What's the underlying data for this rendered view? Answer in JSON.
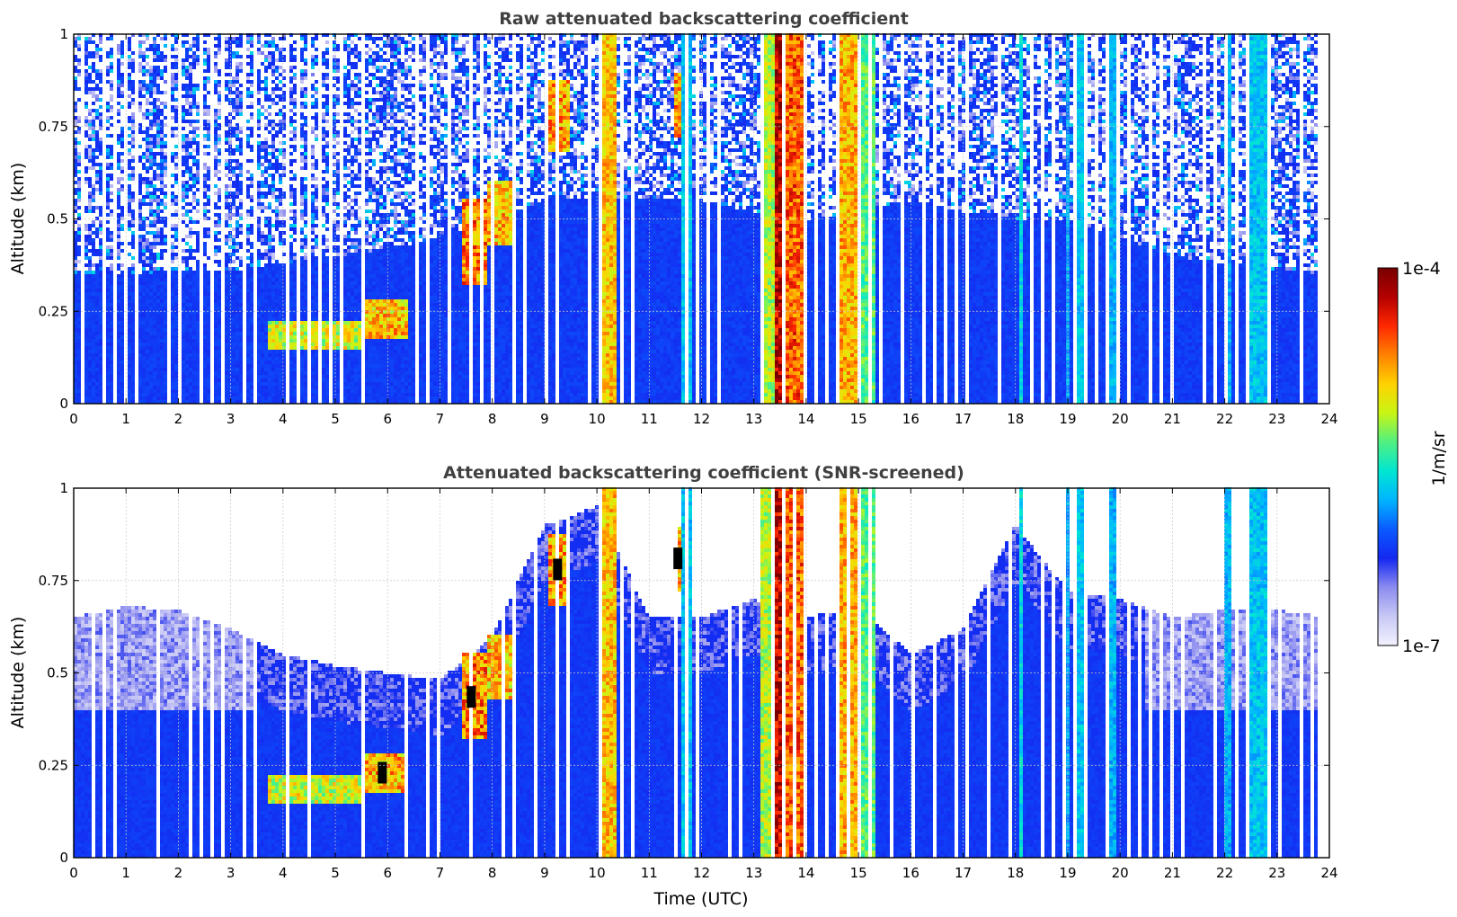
{
  "colors": {
    "colormap": [
      "#f2f2ff",
      "#c8c8f5",
      "#8c8cf0",
      "#1428f0",
      "#0a5aff",
      "#00b4ff",
      "#00e6d2",
      "#50f082",
      "#c8f514",
      "#ffd200",
      "#ff8200",
      "#ff2800",
      "#b40000",
      "#780000"
    ],
    "title_text": "#404040",
    "grid": "#c8c8c8",
    "black_spots": "#000000"
  },
  "colorbar": {
    "max_label": "1e-4",
    "min_label": "1e-7",
    "unit_label": "1/m/sr"
  },
  "chart_data": [
    {
      "type": "heatmap",
      "title": "Raw attenuated backscattering coefficient",
      "xlabel": "",
      "ylabel": "Altitude (km)",
      "xlim": [
        0,
        24
      ],
      "ylim": [
        0,
        1
      ],
      "xticks": [
        "0",
        "1",
        "2",
        "3",
        "4",
        "5",
        "6",
        "7",
        "8",
        "9",
        "10",
        "11",
        "12",
        "13",
        "14",
        "15",
        "16",
        "17",
        "18",
        "19",
        "20",
        "21",
        "22",
        "23",
        "24"
      ],
      "yticks": [
        "0",
        "0.25",
        "0.5",
        "0.75",
        "1"
      ],
      "ytick_values": [
        0,
        0.25,
        0.5,
        0.75,
        1
      ],
      "grid": true,
      "color_scale": "log",
      "clim": [
        1e-07,
        0.0001
      ],
      "data_end_hour": 23.8,
      "background_top_km": [
        0.35,
        0.35,
        0.36,
        0.36,
        0.38,
        0.4,
        0.42,
        0.45,
        0.5,
        0.55,
        0.55,
        0.55,
        0.55,
        0.52,
        0.5,
        0.52,
        0.55,
        0.52,
        0.5,
        0.5,
        0.45,
        0.4,
        0.38,
        0.36,
        0.35
      ],
      "layers": [
        {
          "x0": 3.7,
          "x1": 5.6,
          "y0": 0.15,
          "y1": 0.22,
          "level": 0.7
        },
        {
          "x0": 5.5,
          "x1": 6.4,
          "y0": 0.18,
          "y1": 0.28,
          "level": 0.78
        },
        {
          "x0": 7.4,
          "x1": 7.9,
          "y0": 0.32,
          "y1": 0.55,
          "level": 0.85
        },
        {
          "x0": 7.9,
          "x1": 8.4,
          "y0": 0.43,
          "y1": 0.6,
          "level": 0.78
        },
        {
          "x0": 9.1,
          "x1": 9.5,
          "y0": 0.68,
          "y1": 0.88,
          "level": 0.82
        },
        {
          "x0": 11.5,
          "x1": 11.7,
          "y0": 0.72,
          "y1": 0.9,
          "level": 0.82
        }
      ],
      "columns": [
        {
          "x0": 10.08,
          "x1": 10.4,
          "level": 0.72
        },
        {
          "x0": 11.6,
          "x1": 11.8,
          "level": 0.42
        },
        {
          "x0": 13.15,
          "x1": 13.4,
          "level": 0.62
        },
        {
          "x0": 13.4,
          "x1": 13.55,
          "level": 0.95
        },
        {
          "x0": 13.55,
          "x1": 14.05,
          "level": 0.82
        },
        {
          "x0": 14.65,
          "x1": 14.95,
          "level": 0.74
        },
        {
          "x0": 14.95,
          "x1": 15.35,
          "level": 0.55
        },
        {
          "x0": 18.05,
          "x1": 18.15,
          "level": 0.45
        },
        {
          "x0": 18.95,
          "x1": 19.05,
          "level": 0.38
        },
        {
          "x0": 19.15,
          "x1": 19.3,
          "level": 0.42
        },
        {
          "x0": 19.75,
          "x1": 19.9,
          "level": 0.4
        },
        {
          "x0": 22.0,
          "x1": 22.15,
          "level": 0.4
        },
        {
          "x0": 22.4,
          "x1": 22.8,
          "level": 0.42
        }
      ]
    },
    {
      "type": "heatmap",
      "title": "Attenuated backscattering coefficient (SNR-screened)",
      "xlabel": "Time (UTC)",
      "ylabel": "Altitude (km)",
      "xlim": [
        0,
        24
      ],
      "ylim": [
        0,
        1
      ],
      "xticks": [
        "0",
        "1",
        "2",
        "3",
        "4",
        "5",
        "6",
        "7",
        "8",
        "9",
        "10",
        "11",
        "12",
        "13",
        "14",
        "15",
        "16",
        "17",
        "18",
        "19",
        "20",
        "21",
        "22",
        "23",
        "24"
      ],
      "yticks": [
        "0",
        "0.25",
        "0.5",
        "0.75",
        "1"
      ],
      "ytick_values": [
        0,
        0.25,
        0.5,
        0.75,
        1
      ],
      "grid": true,
      "color_scale": "log",
      "clim": [
        1e-07,
        0.0001
      ],
      "data_end_hour": 23.8,
      "signal_top_km": [
        0.65,
        0.68,
        0.67,
        0.62,
        0.55,
        0.52,
        0.5,
        0.48,
        0.6,
        0.9,
        0.95,
        0.65,
        0.65,
        0.7,
        0.65,
        0.68,
        0.55,
        0.62,
        0.9,
        0.72,
        0.7,
        0.65,
        0.67,
        0.67,
        0.65
      ],
      "layers": [
        {
          "x0": 3.7,
          "x1": 5.6,
          "y0": 0.15,
          "y1": 0.22,
          "level": 0.7
        },
        {
          "x0": 5.5,
          "x1": 6.4,
          "y0": 0.18,
          "y1": 0.28,
          "level": 0.8
        },
        {
          "x0": 7.4,
          "x1": 7.9,
          "y0": 0.32,
          "y1": 0.55,
          "level": 0.85
        },
        {
          "x0": 7.9,
          "x1": 8.4,
          "y0": 0.43,
          "y1": 0.6,
          "level": 0.78
        },
        {
          "x0": 9.1,
          "x1": 9.5,
          "y0": 0.68,
          "y1": 0.88,
          "level": 0.82
        },
        {
          "x0": 11.5,
          "x1": 11.7,
          "y0": 0.72,
          "y1": 0.9,
          "level": 0.82
        }
      ],
      "columns": [
        {
          "x0": 10.08,
          "x1": 10.4,
          "level": 0.72
        },
        {
          "x0": 11.6,
          "x1": 11.8,
          "level": 0.42
        },
        {
          "x0": 13.15,
          "x1": 13.4,
          "level": 0.62
        },
        {
          "x0": 13.4,
          "x1": 13.55,
          "level": 0.95
        },
        {
          "x0": 13.55,
          "x1": 14.05,
          "level": 0.82
        },
        {
          "x0": 14.65,
          "x1": 14.95,
          "level": 0.74
        },
        {
          "x0": 14.95,
          "x1": 15.35,
          "level": 0.55
        },
        {
          "x0": 18.05,
          "x1": 18.15,
          "level": 0.45
        },
        {
          "x0": 18.95,
          "x1": 19.05,
          "level": 0.38
        },
        {
          "x0": 19.15,
          "x1": 19.3,
          "level": 0.42
        },
        {
          "x0": 19.75,
          "x1": 19.9,
          "level": 0.4
        },
        {
          "x0": 22.0,
          "x1": 22.15,
          "level": 0.4
        },
        {
          "x0": 22.4,
          "x1": 22.8,
          "level": 0.42
        }
      ]
    }
  ]
}
